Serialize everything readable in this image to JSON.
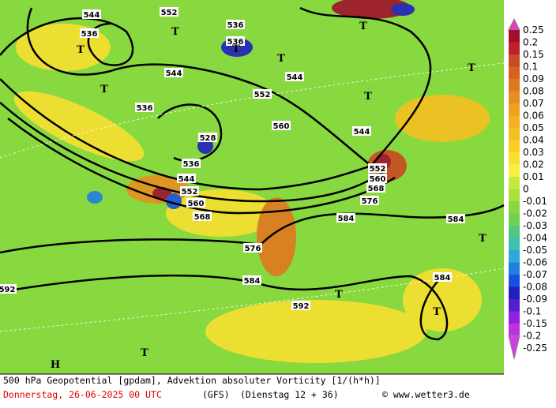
{
  "map": {
    "contour_labels": [
      "544",
      "552",
      "536",
      "536",
      "536",
      "544",
      "552",
      "544",
      "536",
      "528",
      "536",
      "544",
      "552",
      "560",
      "568",
      "560",
      "544",
      "552",
      "560",
      "568",
      "576",
      "584",
      "584",
      "584",
      "576",
      "584",
      "592",
      "592"
    ],
    "markers": [
      "T",
      "T",
      "T",
      "T",
      "T",
      "T",
      "T",
      "T",
      "T",
      "T",
      "T",
      "T",
      "H"
    ],
    "colorbar": {
      "labels": [
        "0.25",
        "0.2",
        "0.15",
        "0.1",
        "0.09",
        "0.08",
        "0.07",
        "0.06",
        "0.05",
        "0.04",
        "0.03",
        "0.02",
        "0.01",
        "0",
        "-0.01",
        "-0.02",
        "-0.03",
        "-0.04",
        "-0.05",
        "-0.06",
        "-0.07",
        "-0.08",
        "-0.09",
        "-0.1",
        "-0.15",
        "-0.2",
        "-0.25"
      ],
      "colors": [
        "#e040c0",
        "#a0102a",
        "#c0202a",
        "#c84a20",
        "#d86020",
        "#e07820",
        "#e88e20",
        "#f0a020",
        "#f4b020",
        "#f6c020",
        "#f8d020",
        "#f8e030",
        "#f8f040",
        "#c8e840",
        "#a8e040",
        "#88d840",
        "#70d050",
        "#50c880",
        "#40c0b0",
        "#30a8d8",
        "#2080e0",
        "#1a50e0",
        "#2020c0",
        "#5020d0",
        "#9020e0",
        "#c030e0",
        "#d040e0"
      ]
    },
    "footer": {
      "title": "500 hPa Geopotential [gpdam], Advektion absoluter Vorticity [1/(h*h)]",
      "date": "Donnerstag, 26-06-2025  00 UTC",
      "model": "(GFS)",
      "run": "(Dienstag 12 + 36)",
      "credit": "© www.wetter3.de"
    }
  }
}
